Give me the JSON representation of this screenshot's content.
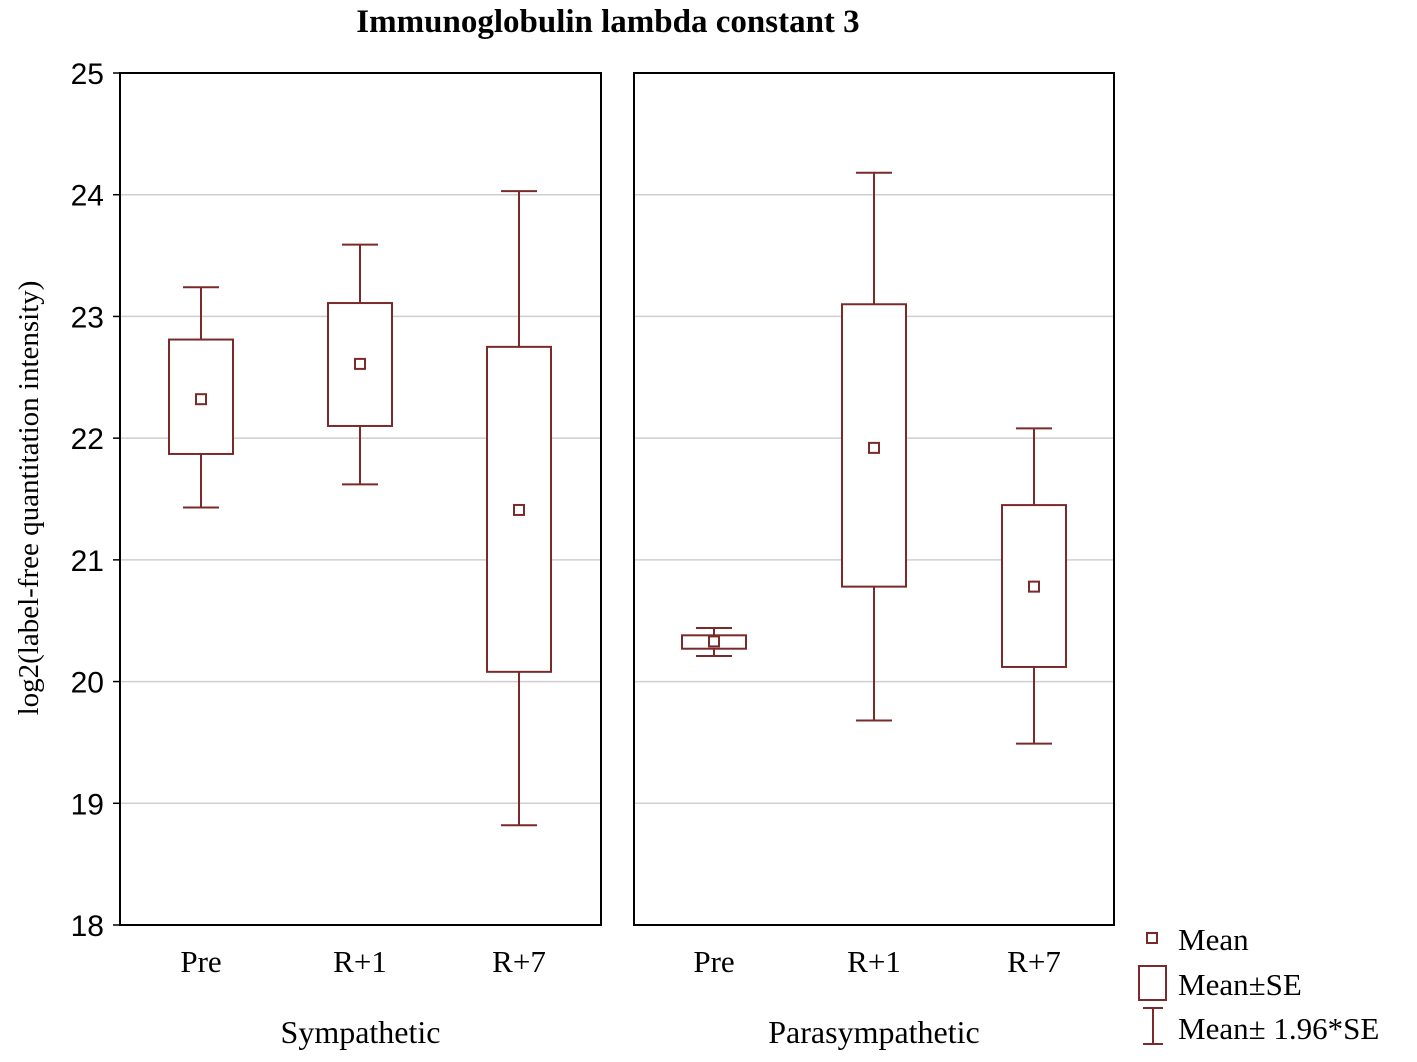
{
  "chart_data": {
    "type": "box",
    "title": "Immunoglobulin lambda constant 3",
    "ylabel": "log2(label-free quantitation intensity)",
    "ylim": [
      18,
      25
    ],
    "yticks": [
      "18",
      "19",
      "20",
      "21",
      "22",
      "23",
      "24",
      "25"
    ],
    "grid": true,
    "color": "#7a2a2a",
    "panels": [
      {
        "name": "Sympathetic",
        "categories": [
          "Pre",
          "R+1",
          "R+7"
        ],
        "boxes": [
          {
            "category": "Pre",
            "mean": 22.32,
            "se_low": 21.87,
            "se_high": 22.81,
            "ci_low": 21.43,
            "ci_high": 23.24
          },
          {
            "category": "R+1",
            "mean": 22.61,
            "se_low": 22.1,
            "se_high": 23.11,
            "ci_low": 21.62,
            "ci_high": 23.59
          },
          {
            "category": "R+7",
            "mean": 21.41,
            "se_low": 20.08,
            "se_high": 22.75,
            "ci_low": 18.82,
            "ci_high": 24.03
          }
        ]
      },
      {
        "name": "Parasympathetic",
        "categories": [
          "Pre",
          "R+1",
          "R+7"
        ],
        "boxes": [
          {
            "category": "Pre",
            "mean": 20.33,
            "se_low": 20.27,
            "se_high": 20.38,
            "ci_low": 20.21,
            "ci_high": 20.44
          },
          {
            "category": "R+1",
            "mean": 21.92,
            "se_low": 20.78,
            "se_high": 23.1,
            "ci_low": 19.68,
            "ci_high": 24.18
          },
          {
            "category": "R+7",
            "mean": 20.78,
            "se_low": 20.12,
            "se_high": 21.45,
            "ci_low": 19.49,
            "ci_high": 22.08
          }
        ]
      }
    ],
    "legend": {
      "position": "bottom-right",
      "items": [
        "Mean",
        "Mean±SE",
        "Mean± 1.96*SE"
      ]
    }
  }
}
